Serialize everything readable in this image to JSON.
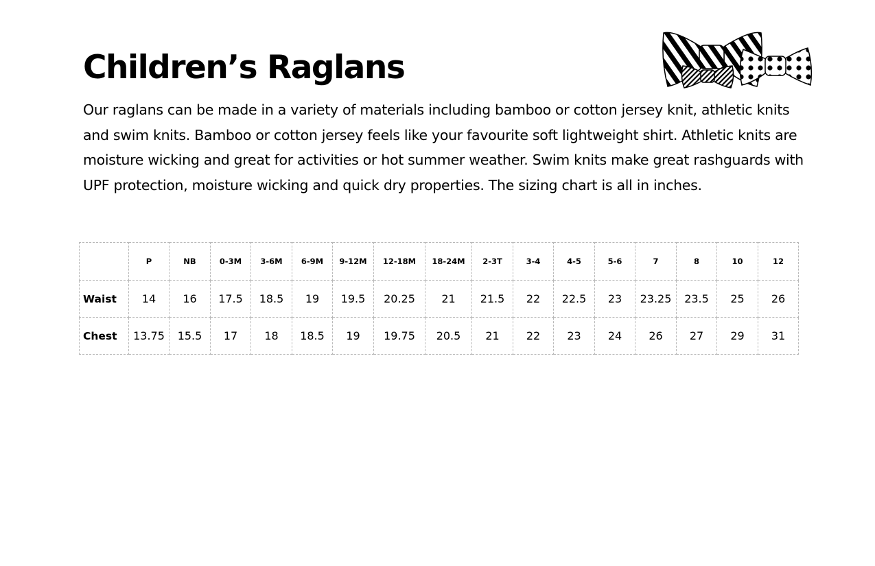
{
  "title": "Children’s Raglans",
  "intro": "Our raglans can be made in a variety of materials including bamboo or cotton jersey knit, athletic knits and swim knits.  Bamboo or cotton jersey feels like your favourite soft lightweight shirt. Athletic knits are moisture wicking and great for activities or hot summer weather. Swim knits make great rashguards with UPF protection, moisture wicking and quick dry properties. The sizing chart is all in inches.",
  "logo": {
    "icon": "bow-ties-illustration"
  },
  "size_chart": {
    "columns": [
      "P",
      "NB",
      "0-3M",
      "3-6M",
      "6-9M",
      "9-12M",
      "12-18M",
      "18-24M",
      "2-3T",
      "3-4",
      "4-5",
      "5-6",
      "7",
      "8",
      "10",
      "12"
    ],
    "rows": [
      {
        "label": "Waist",
        "values": [
          "14",
          "16",
          "17.5",
          "18.5",
          "19",
          "19.5",
          "20.25",
          "21",
          "21.5",
          "22",
          "22.5",
          "23",
          "23.25",
          "23.5",
          "25",
          "26"
        ]
      },
      {
        "label": "Chest",
        "values": [
          "13.75",
          "15.5",
          "17",
          "18",
          "18.5",
          "19",
          "19.75",
          "20.5",
          "21",
          "22",
          "23",
          "24",
          "26",
          "27",
          "29",
          "31"
        ]
      }
    ]
  }
}
